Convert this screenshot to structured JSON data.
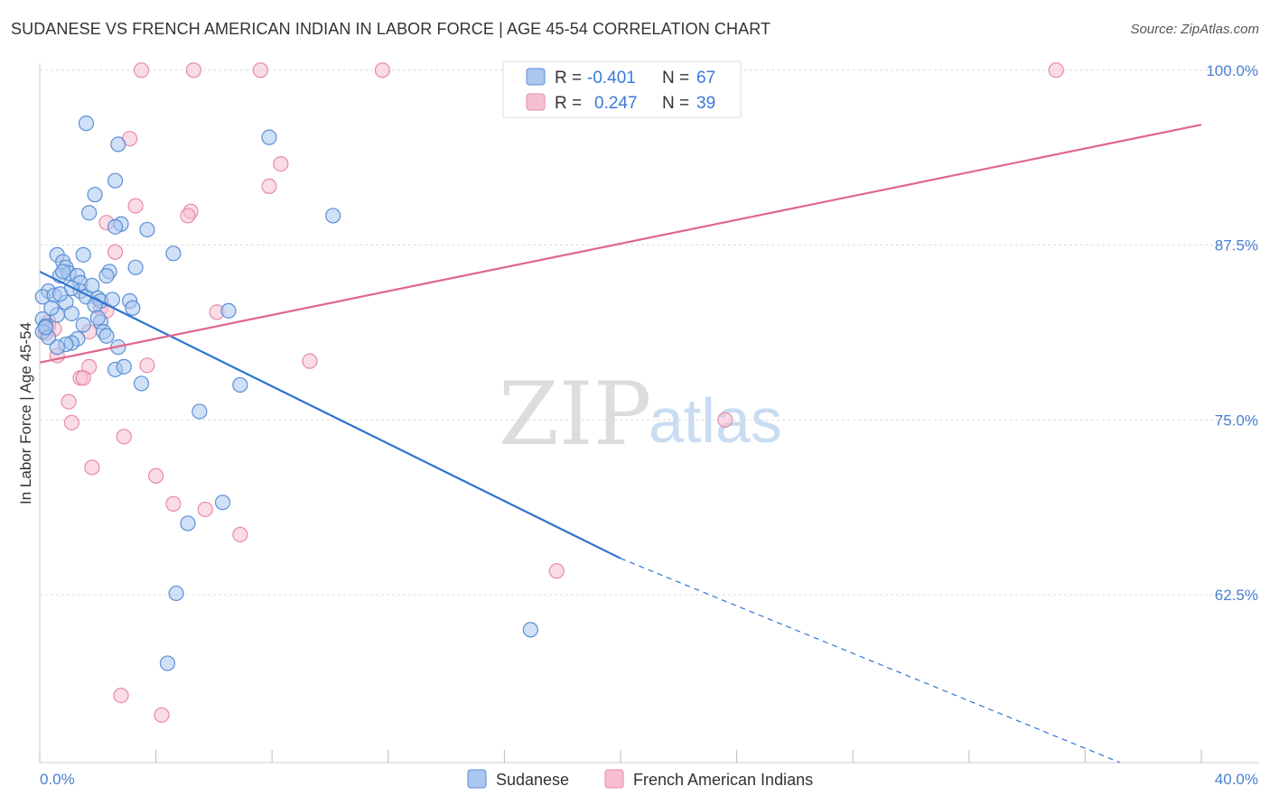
{
  "title": "SUDANESE VS FRENCH AMERICAN INDIAN IN LABOR FORCE | AGE 45-54 CORRELATION CHART",
  "source": "Source: ZipAtlas.com",
  "watermark": {
    "zip": "ZIP",
    "atlas": "atlas"
  },
  "colors": {
    "sudanese_fill": "#a9c7ef",
    "sudanese_stroke": "#5b8fd6",
    "sudanese_line": "#2f74d0",
    "french_fill": "#f6bfd0",
    "french_stroke": "#e88aa8",
    "french_line": "#e0668c",
    "grid": "#dddddd",
    "tick": "#4a7fd0"
  },
  "legend": {
    "rows": [
      {
        "r_label": "R =",
        "r_value": "-0.401",
        "n_label": "N =",
        "n_value": "67"
      },
      {
        "r_label": "R =",
        "r_value": "0.247",
        "n_label": "N =",
        "n_value": "39"
      }
    ]
  },
  "bottom_legend": [
    "Sudanese",
    "French American Indians"
  ],
  "chart_data": {
    "type": "scatter",
    "title": "SUDANESE VS FRENCH AMERICAN INDIAN IN LABOR FORCE | AGE 45-54 CORRELATION CHART",
    "xlabel": "",
    "ylabel": "In Labor Force | Age 45-54",
    "xlim": [
      0,
      40
    ],
    "ylim": [
      50.5,
      100.5
    ],
    "x_tick_labels": [
      "0.0%",
      "40.0%"
    ],
    "y_ticks": [
      62.5,
      75.0,
      87.5,
      100.0
    ],
    "y_tick_labels": [
      "62.5%",
      "75.0%",
      "87.5%",
      "100.0%"
    ],
    "series": [
      {
        "name": "Sudanese",
        "r": -0.401,
        "n": 67,
        "trend": {
          "x0": 0,
          "y0": 85.6,
          "x1": 20,
          "y1": 65.1,
          "dash_x1": 37.2,
          "dash_y1": 50.5
        },
        "points": [
          [
            1.6,
            96.2
          ],
          [
            2.7,
            94.7
          ],
          [
            7.9,
            95.2
          ],
          [
            2.6,
            92.1
          ],
          [
            1.9,
            91.1
          ],
          [
            1.7,
            89.8
          ],
          [
            3.7,
            88.6
          ],
          [
            2.8,
            89.0
          ],
          [
            10.1,
            89.6
          ],
          [
            2.6,
            88.8
          ],
          [
            4.6,
            86.9
          ],
          [
            0.6,
            86.8
          ],
          [
            1.5,
            86.8
          ],
          [
            3.3,
            85.9
          ],
          [
            2.4,
            85.6
          ],
          [
            2.3,
            85.3
          ],
          [
            0.8,
            86.3
          ],
          [
            0.9,
            85.9
          ],
          [
            0.7,
            85.3
          ],
          [
            1.0,
            85.5
          ],
          [
            1.3,
            85.3
          ],
          [
            1.4,
            84.8
          ],
          [
            1.4,
            84.2
          ],
          [
            1.1,
            84.4
          ],
          [
            0.3,
            84.2
          ],
          [
            0.1,
            83.8
          ],
          [
            0.5,
            83.9
          ],
          [
            0.9,
            83.4
          ],
          [
            1.6,
            83.8
          ],
          [
            2.0,
            83.7
          ],
          [
            2.1,
            83.5
          ],
          [
            3.1,
            83.5
          ],
          [
            3.2,
            83.0
          ],
          [
            6.5,
            82.8
          ],
          [
            1.1,
            82.6
          ],
          [
            0.6,
            82.5
          ],
          [
            0.1,
            82.2
          ],
          [
            0.2,
            81.7
          ],
          [
            1.5,
            81.8
          ],
          [
            2.1,
            82.0
          ],
          [
            2.2,
            81.3
          ],
          [
            2.3,
            81.0
          ],
          [
            1.3,
            80.8
          ],
          [
            1.1,
            80.5
          ],
          [
            0.9,
            80.4
          ],
          [
            0.6,
            80.2
          ],
          [
            2.7,
            80.2
          ],
          [
            0.1,
            81.3
          ],
          [
            0.3,
            80.9
          ],
          [
            0.2,
            81.6
          ],
          [
            2.6,
            78.6
          ],
          [
            2.9,
            78.8
          ],
          [
            3.5,
            77.6
          ],
          [
            6.9,
            77.5
          ],
          [
            5.5,
            75.6
          ],
          [
            6.3,
            69.1
          ],
          [
            5.1,
            67.6
          ],
          [
            4.7,
            62.6
          ],
          [
            16.9,
            60.0
          ],
          [
            4.4,
            57.6
          ],
          [
            0.7,
            84.0
          ],
          [
            1.8,
            84.6
          ],
          [
            2.5,
            83.6
          ],
          [
            0.4,
            83.0
          ],
          [
            1.9,
            83.2
          ],
          [
            0.8,
            85.6
          ],
          [
            2.0,
            82.3
          ]
        ]
      },
      {
        "name": "French American Indians",
        "r": 0.247,
        "n": 39,
        "trend": {
          "x0": 0,
          "y0": 79.1,
          "x1": 40,
          "y1": 96.1
        },
        "points": [
          [
            3.5,
            100.0
          ],
          [
            5.3,
            100.0
          ],
          [
            7.6,
            100.0
          ],
          [
            11.8,
            100.0
          ],
          [
            35.0,
            100.0
          ],
          [
            3.1,
            95.1
          ],
          [
            8.3,
            93.3
          ],
          [
            7.9,
            91.7
          ],
          [
            3.3,
            90.3
          ],
          [
            5.2,
            89.9
          ],
          [
            5.1,
            89.6
          ],
          [
            2.3,
            89.1
          ],
          [
            2.6,
            87.0
          ],
          [
            2.1,
            83.0
          ],
          [
            2.3,
            82.8
          ],
          [
            6.1,
            82.7
          ],
          [
            0.3,
            82.0
          ],
          [
            0.3,
            81.7
          ],
          [
            0.5,
            81.5
          ],
          [
            1.7,
            81.3
          ],
          [
            0.2,
            81.2
          ],
          [
            0.6,
            79.6
          ],
          [
            1.7,
            78.8
          ],
          [
            3.7,
            78.9
          ],
          [
            9.3,
            79.2
          ],
          [
            1.4,
            78.0
          ],
          [
            1.5,
            78.0
          ],
          [
            1.0,
            76.3
          ],
          [
            1.1,
            74.8
          ],
          [
            2.9,
            73.8
          ],
          [
            1.8,
            71.6
          ],
          [
            4.0,
            71.0
          ],
          [
            4.6,
            69.0
          ],
          [
            5.7,
            68.6
          ],
          [
            6.9,
            66.8
          ],
          [
            17.8,
            64.2
          ],
          [
            23.6,
            75.0
          ],
          [
            2.8,
            55.3
          ],
          [
            4.2,
            53.9
          ]
        ]
      }
    ]
  }
}
